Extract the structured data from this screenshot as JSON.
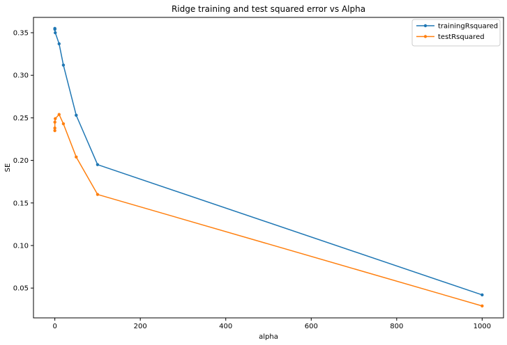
{
  "chart_data": {
    "type": "line",
    "title": "Ridge training and test squared error vs Alpha",
    "xlabel": "alpha",
    "ylabel": "SE",
    "xlim": [
      -50,
      1050
    ],
    "ylim": [
      0.015,
      0.368
    ],
    "xticks": [
      0,
      200,
      400,
      600,
      800,
      1000
    ],
    "xtick_labels": [
      "0",
      "200",
      "400",
      "600",
      "800",
      "1000"
    ],
    "yticks": [
      0.05,
      0.1,
      0.15,
      0.2,
      0.25,
      0.3,
      0.35
    ],
    "ytick_labels": [
      "0.05",
      "0.10",
      "0.15",
      "0.20",
      "0.25",
      "0.30",
      "0.35"
    ],
    "grid": false,
    "legend_position": "top-right",
    "x": [
      0.001,
      0.01,
      0.1,
      1,
      10,
      20,
      50,
      100,
      1000
    ],
    "series": [
      {
        "name": "trainingRsquared",
        "color": "#1f77b4",
        "marker": "point",
        "values": [
          0.355,
          0.355,
          0.354,
          0.35,
          0.337,
          0.312,
          0.253,
          0.195,
          0.042
        ]
      },
      {
        "name": "testRsquared",
        "color": "#ff7f0e",
        "marker": "point",
        "values": [
          0.235,
          0.238,
          0.245,
          0.249,
          0.254,
          0.243,
          0.204,
          0.16,
          0.029
        ]
      }
    ]
  }
}
